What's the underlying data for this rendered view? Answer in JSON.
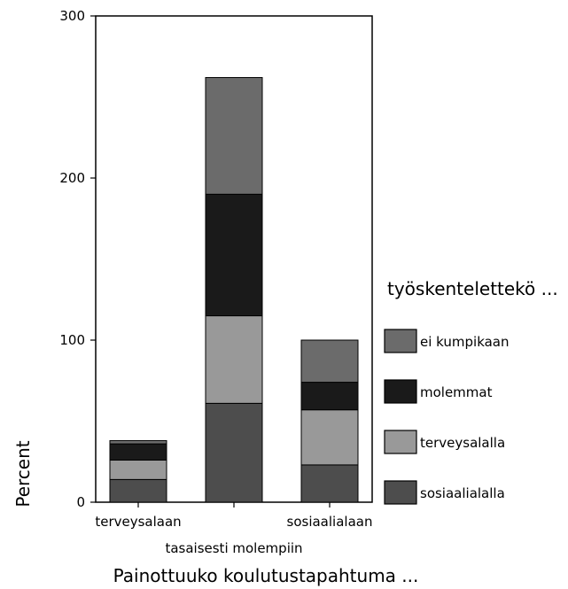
{
  "chart_data": {
    "type": "bar",
    "stacked": true,
    "categories": [
      "terveysalaan",
      "tasaisesti molempiin",
      "sosiaalialaan"
    ],
    "series": [
      {
        "name": "sosiaalialalla",
        "color": "#4d4d4d",
        "values": [
          14,
          61,
          23
        ]
      },
      {
        "name": "terveysalalla",
        "color": "#999999",
        "values": [
          12,
          54,
          34
        ]
      },
      {
        "name": "molemmat",
        "color": "#1a1a1a",
        "values": [
          10,
          75,
          17
        ]
      },
      {
        "name": "ei kumpikaan",
        "color": "#6b6b6b",
        "values": [
          2,
          72,
          26
        ]
      }
    ],
    "xlabel": "Painottuuko koulutustapahtuma ...",
    "ylabel": "Percent",
    "ylim": [
      0,
      300
    ],
    "yticks": [
      0,
      100,
      200,
      300
    ],
    "legend_title": "työskentelettekö ...",
    "legend_position": "right",
    "grid": false
  }
}
